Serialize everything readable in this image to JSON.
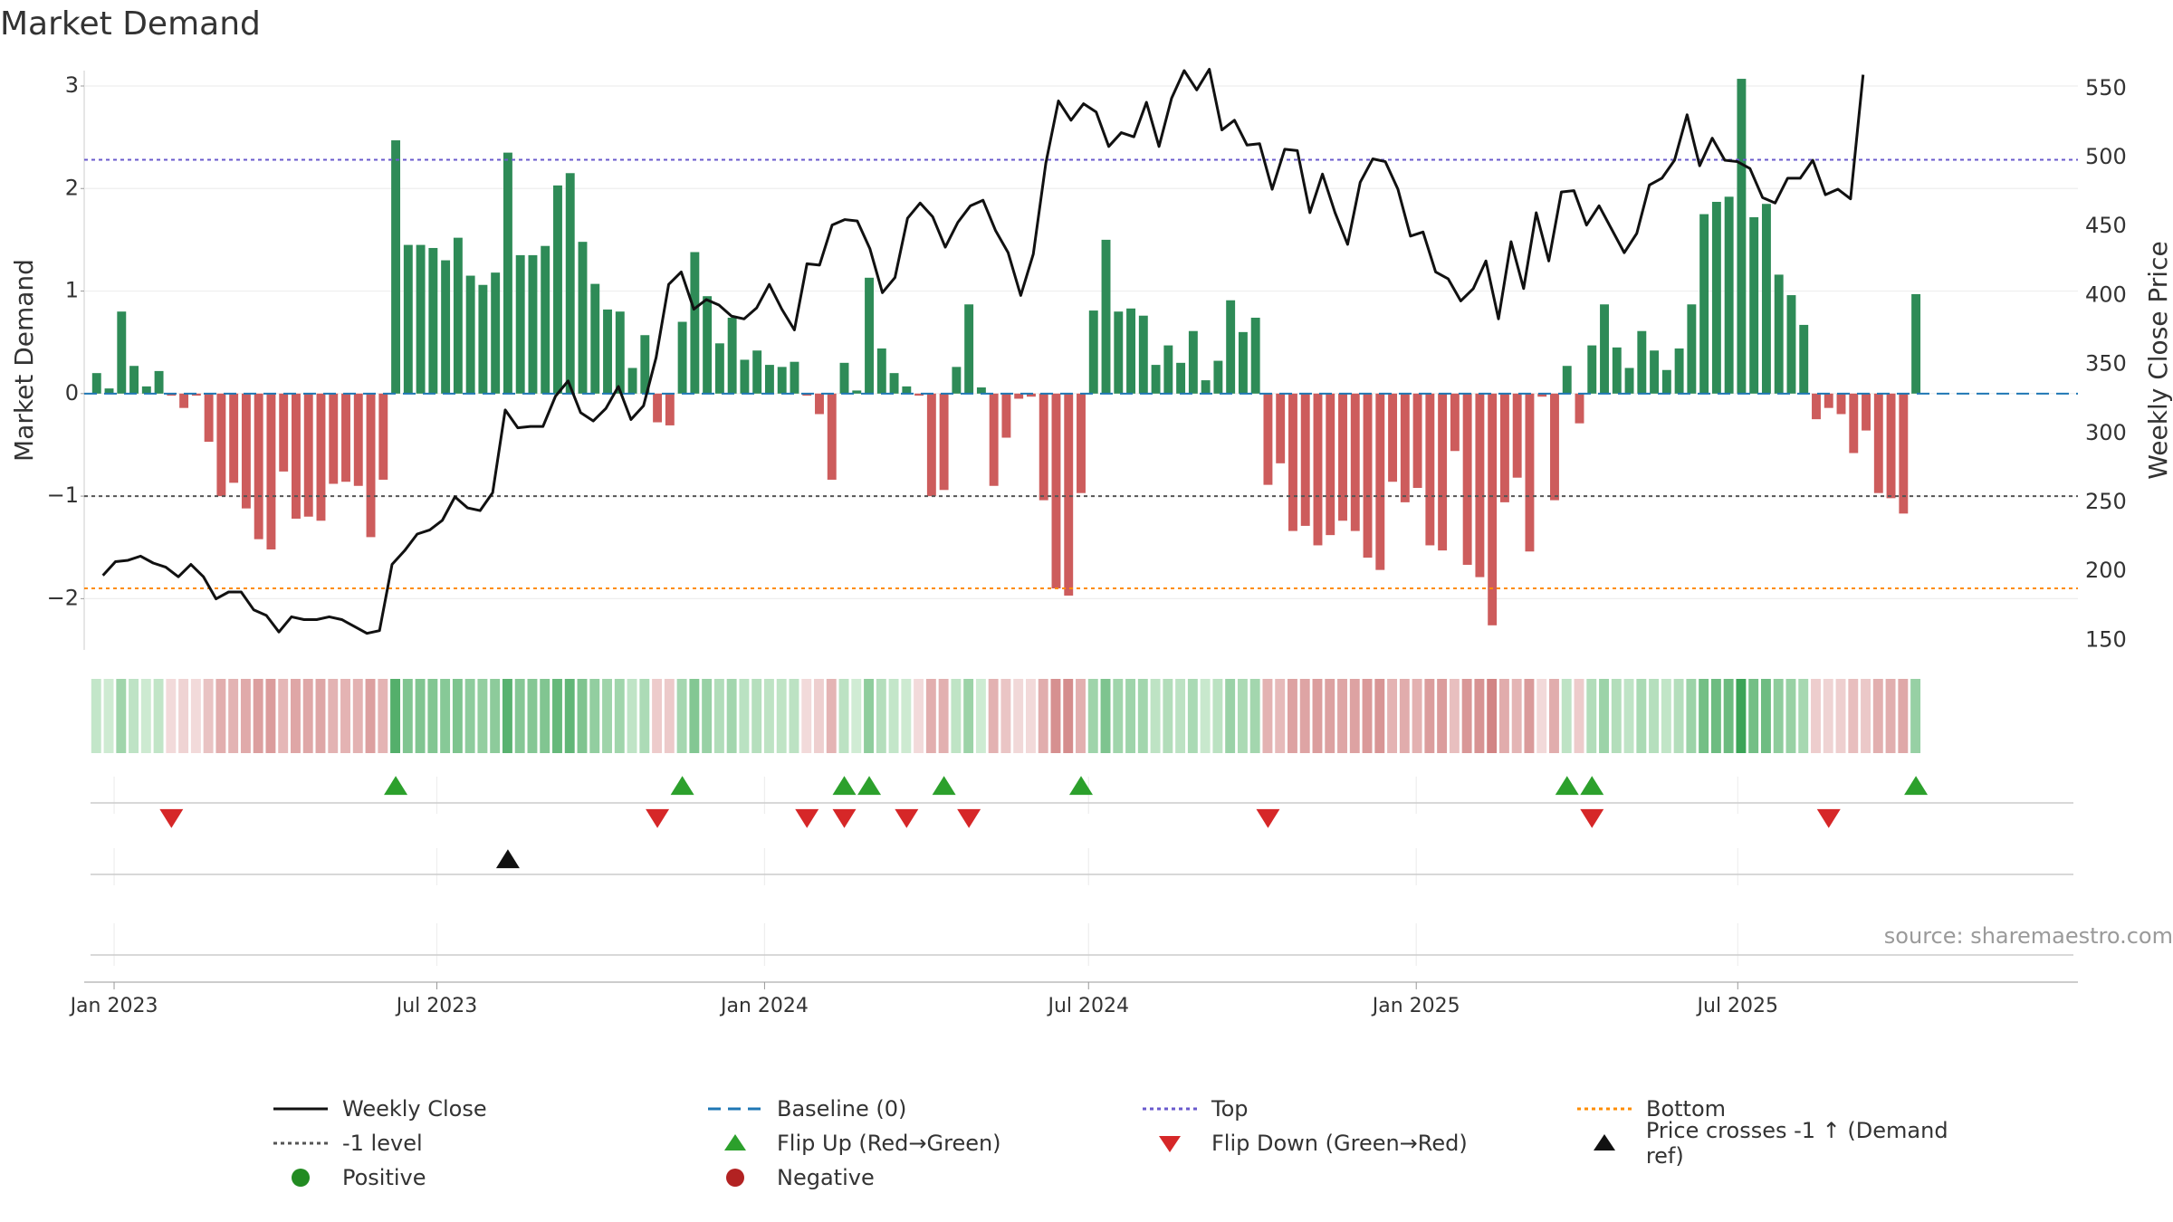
{
  "title": "Market Demand",
  "source": "source: sharemaestro.com",
  "colors": {
    "green": "#2e8b57",
    "red": "#cd5c5c",
    "top": "#6a5acd",
    "bottom": "#ff8c00",
    "level": "#555555",
    "baseline": "#1f77b4",
    "price": "#111111",
    "flip_up": "#2ca02c",
    "flip_down": "#d62728",
    "positive": "#228b22",
    "negative": "#b22222"
  },
  "chart_data": {
    "type": "bar",
    "title": "Market Demand",
    "ylabel": "Market Demand",
    "y2label": "Weekly Close Price",
    "ylim": [
      -2.5,
      3.15
    ],
    "y2lim": [
      143,
      563
    ],
    "yticks": [
      -2,
      -1,
      0,
      1,
      2,
      3
    ],
    "ytick_labels": [
      "−2",
      "−1",
      "0",
      "1",
      "2",
      "3"
    ],
    "y2ticks": [
      150,
      200,
      250,
      300,
      350,
      400,
      450,
      500,
      550
    ],
    "x_start": "2022-12-26",
    "x_step_weeks": 1,
    "x_range_weeks": [
      -1,
      159
    ],
    "xticks": [
      {
        "week": 1.4,
        "label": "Jan 2023"
      },
      {
        "week": 27.3,
        "label": "Jul 2023"
      },
      {
        "week": 53.6,
        "label": "Jan 2024"
      },
      {
        "week": 79.6,
        "label": "Jul 2024"
      },
      {
        "week": 105.9,
        "label": "Jan 2025"
      },
      {
        "week": 131.7,
        "label": "Jul 2025"
      }
    ],
    "levels": {
      "top": 2.28,
      "bottom": -1.9,
      "minus_one": -1.0,
      "baseline": 0
    },
    "demand": [
      0.2,
      0.05,
      0.8,
      0.27,
      0.07,
      0.22,
      -0.02,
      -0.14,
      -0.02,
      -0.47,
      -1.0,
      -0.87,
      -1.12,
      -1.42,
      -1.52,
      -0.76,
      -1.22,
      -1.2,
      -1.24,
      -0.88,
      -0.86,
      -0.9,
      -1.4,
      -0.84,
      2.47,
      1.45,
      1.45,
      1.42,
      1.3,
      1.52,
      1.15,
      1.06,
      1.18,
      2.35,
      1.35,
      1.35,
      1.44,
      2.03,
      2.15,
      1.48,
      1.07,
      0.82,
      0.8,
      0.25,
      0.57,
      -0.28,
      -0.31,
      0.7,
      1.38,
      0.95,
      0.49,
      0.74,
      0.33,
      0.42,
      0.28,
      0.26,
      0.31,
      -0.02,
      -0.2,
      -0.84,
      0.3,
      0.03,
      1.13,
      0.44,
      0.2,
      0.07,
      -0.02,
      -1.0,
      -0.94,
      0.26,
      0.87,
      0.06,
      -0.9,
      -0.43,
      -0.05,
      -0.03,
      -1.04,
      -1.9,
      -1.97,
      -0.97,
      0.81,
      1.5,
      0.8,
      0.83,
      0.76,
      0.28,
      0.47,
      0.3,
      0.61,
      0.13,
      0.32,
      0.91,
      0.6,
      0.74,
      -0.89,
      -0.68,
      -1.34,
      -1.29,
      -1.48,
      -1.38,
      -1.24,
      -1.34,
      -1.6,
      -1.72,
      -0.86,
      -1.06,
      -0.92,
      -1.48,
      -1.53,
      -0.56,
      -1.67,
      -1.79,
      -2.26,
      -1.06,
      -0.82,
      -1.54,
      -0.03,
      -1.04,
      0.27,
      -0.29,
      0.47,
      0.87,
      0.45,
      0.25,
      0.61,
      0.42,
      0.23,
      0.44,
      0.87,
      1.75,
      1.87,
      1.92,
      3.07,
      1.72,
      1.85,
      1.16,
      0.96,
      0.67,
      -0.25,
      -0.14,
      -0.2,
      -0.58,
      -0.36,
      -0.97,
      -1.02,
      -1.17,
      0.97
    ],
    "price": [
      197,
      207,
      208,
      211,
      206,
      203,
      196,
      205,
      196,
      180,
      185,
      185,
      172,
      168,
      156,
      167,
      165,
      165,
      167,
      165,
      160,
      155,
      157,
      205,
      215,
      227,
      230,
      237,
      254,
      246,
      244,
      257,
      317,
      304,
      305,
      305,
      327,
      338,
      315,
      309,
      318,
      334,
      310,
      320,
      355,
      408,
      417,
      390,
      397,
      393,
      385,
      383,
      391,
      408,
      390,
      375,
      423,
      422,
      451,
      455,
      454,
      434,
      402,
      413,
      456,
      467,
      457,
      435,
      453,
      465,
      469,
      447,
      431,
      400,
      430,
      496,
      541,
      527,
      539,
      533,
      508,
      518,
      515,
      540,
      508,
      543,
      563,
      549,
      564,
      520,
      527,
      509,
      510,
      477,
      506,
      505,
      460,
      488,
      460,
      437,
      482,
      499,
      497,
      477,
      443,
      446,
      417,
      412,
      396,
      405,
      425,
      383,
      439,
      405,
      460,
      425,
      475,
      476,
      451,
      465,
      448,
      431,
      445,
      480,
      485,
      498,
      531,
      494,
      514,
      498,
      497,
      492,
      471,
      467,
      485,
      485,
      498,
      473,
      477,
      470,
      560
    ],
    "price_offset_weeks": 0.5,
    "flip_up_weeks": [
      24,
      47,
      60,
      62,
      68,
      79,
      118,
      120,
      146
    ],
    "flip_down_weeks": [
      6,
      45,
      57,
      60,
      65,
      70,
      94,
      120,
      139
    ],
    "cross_weeks": [
      33
    ],
    "legend": [
      {
        "label": "Weekly Close",
        "symbol": "solid-line",
        "color_key": "price"
      },
      {
        "label": "Baseline (0)",
        "symbol": "dash-line",
        "color_key": "baseline"
      },
      {
        "label": "Top",
        "symbol": "dot-line",
        "color_key": "top"
      },
      {
        "label": "Bottom",
        "symbol": "dot-line",
        "color_key": "bottom"
      },
      {
        "label": "-1 level",
        "symbol": "dot-line",
        "color_key": "level"
      },
      {
        "label": "Flip Up (Red→Green)",
        "symbol": "tri-up",
        "color_key": "flip_up"
      },
      {
        "label": "Flip Down (Green→Red)",
        "symbol": "tri-down",
        "color_key": "flip_down"
      },
      {
        "label": "Price crosses -1 ↑ (Demand ref)",
        "symbol": "tri-up",
        "color_key": "price"
      },
      {
        "label": "Positive",
        "symbol": "circle",
        "color_key": "positive"
      },
      {
        "label": "Negative",
        "symbol": "circle",
        "color_key": "negative"
      }
    ]
  }
}
